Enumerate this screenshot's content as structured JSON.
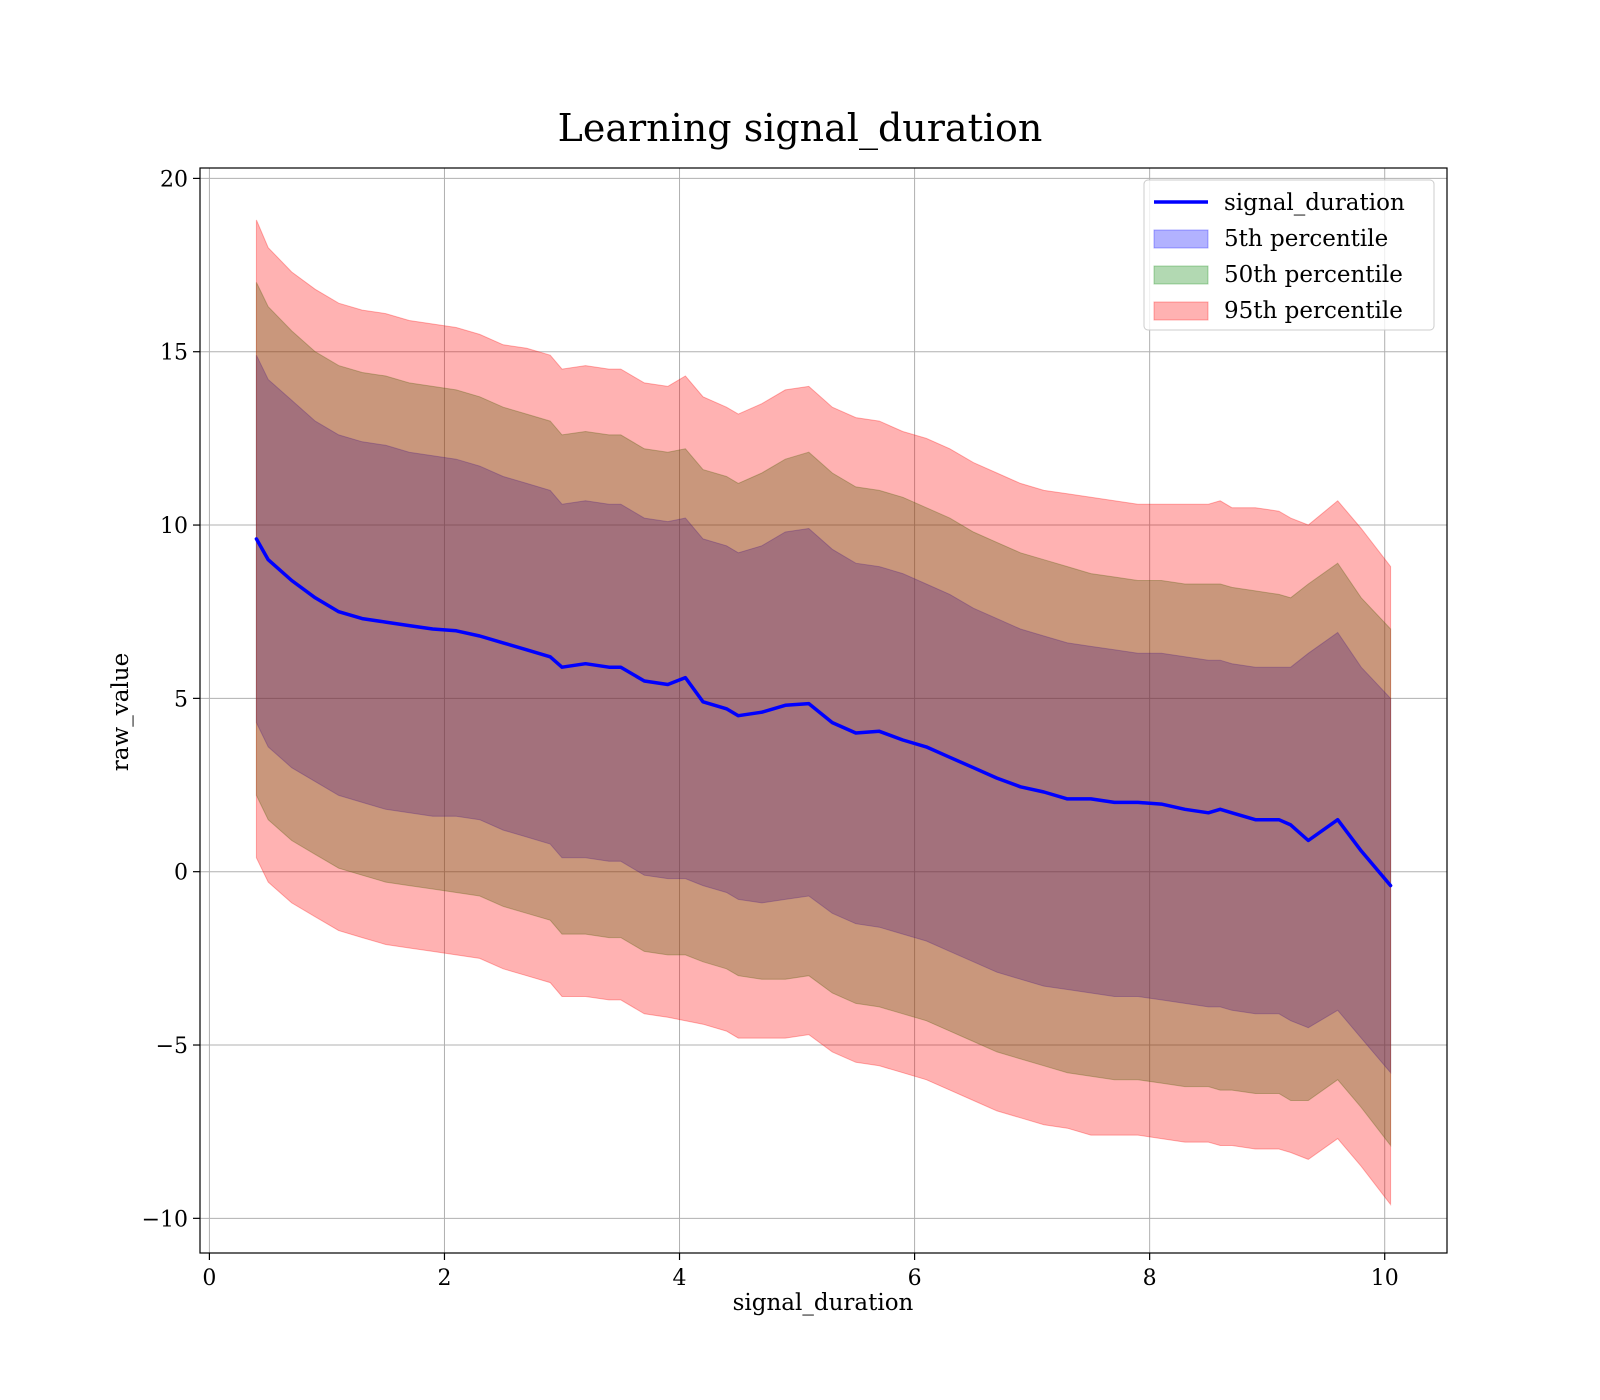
{
  "chart_data": {
    "type": "line",
    "title": "Learning signal_duration",
    "xlabel": "signal_duration",
    "ylabel": "raw_value",
    "xlim": [
      -0.08,
      10.53
    ],
    "ylim": [
      -11,
      20.3
    ],
    "grid": true,
    "x_ticks": [
      0,
      2,
      4,
      6,
      8,
      10
    ],
    "x_tick_labels": [
      "0",
      "2",
      "4",
      "6",
      "8",
      "10"
    ],
    "y_ticks": [
      -10,
      -5,
      0,
      5,
      10,
      15,
      20
    ],
    "y_tick_labels": [
      "−10",
      "−5",
      "0",
      "5",
      "10",
      "15",
      "20"
    ],
    "legend_position": "upper right",
    "x": [
      0.4,
      0.5,
      0.7,
      0.9,
      1.1,
      1.3,
      1.5,
      1.7,
      1.9,
      2.1,
      2.3,
      2.5,
      2.7,
      2.9,
      3.0,
      3.2,
      3.4,
      3.5,
      3.7,
      3.9,
      4.05,
      4.2,
      4.4,
      4.5,
      4.7,
      4.9,
      5.1,
      5.3,
      5.5,
      5.7,
      5.9,
      6.1,
      6.3,
      6.5,
      6.7,
      6.9,
      7.1,
      7.3,
      7.5,
      7.7,
      7.9,
      8.1,
      8.3,
      8.5,
      8.6,
      8.7,
      8.9,
      9.1,
      9.2,
      9.35,
      9.6,
      9.8,
      10.05
    ],
    "series": [
      {
        "name": "signal_duration",
        "kind": "line",
        "color": "#0000ff",
        "values": [
          9.6,
          9.0,
          8.4,
          7.9,
          7.5,
          7.3,
          7.2,
          7.1,
          7.0,
          6.95,
          6.8,
          6.6,
          6.4,
          6.2,
          5.9,
          6.0,
          5.9,
          5.9,
          5.5,
          5.4,
          5.6,
          4.9,
          4.7,
          4.5,
          4.6,
          4.8,
          4.85,
          4.3,
          4.0,
          4.05,
          3.8,
          3.6,
          3.3,
          3.0,
          2.7,
          2.45,
          2.3,
          2.1,
          2.1,
          2.0,
          2.0,
          1.95,
          1.8,
          1.7,
          1.8,
          1.7,
          1.5,
          1.5,
          1.35,
          0.9,
          1.5,
          0.6,
          -0.4
        ]
      },
      {
        "name": "5th percentile",
        "kind": "band",
        "color": "#0000ff",
        "upper": [
          14.9,
          14.2,
          13.6,
          13.0,
          12.6,
          12.4,
          12.3,
          12.1,
          12.0,
          11.9,
          11.7,
          11.4,
          11.2,
          11.0,
          10.6,
          10.7,
          10.6,
          10.6,
          10.2,
          10.1,
          10.2,
          9.6,
          9.4,
          9.2,
          9.4,
          9.8,
          9.9,
          9.3,
          8.9,
          8.8,
          8.6,
          8.3,
          8.0,
          7.6,
          7.3,
          7.0,
          6.8,
          6.6,
          6.5,
          6.4,
          6.3,
          6.3,
          6.2,
          6.1,
          6.1,
          6.0,
          5.9,
          5.9,
          5.9,
          6.3,
          6.9,
          5.9,
          5.0
        ],
        "lower": [
          4.3,
          3.6,
          3.0,
          2.6,
          2.2,
          2.0,
          1.8,
          1.7,
          1.6,
          1.6,
          1.5,
          1.2,
          1.0,
          0.8,
          0.4,
          0.4,
          0.3,
          0.3,
          -0.1,
          -0.2,
          -0.2,
          -0.4,
          -0.6,
          -0.8,
          -0.9,
          -0.8,
          -0.7,
          -1.2,
          -1.5,
          -1.6,
          -1.8,
          -2.0,
          -2.3,
          -2.6,
          -2.9,
          -3.1,
          -3.3,
          -3.4,
          -3.5,
          -3.6,
          -3.6,
          -3.7,
          -3.8,
          -3.9,
          -3.9,
          -4.0,
          -4.1,
          -4.1,
          -4.3,
          -4.5,
          -4.0,
          -4.8,
          -5.8
        ]
      },
      {
        "name": "50th percentile",
        "kind": "band",
        "color": "#008000",
        "upper": [
          17.0,
          16.3,
          15.6,
          15.0,
          14.6,
          14.4,
          14.3,
          14.1,
          14.0,
          13.9,
          13.7,
          13.4,
          13.2,
          13.0,
          12.6,
          12.7,
          12.6,
          12.6,
          12.2,
          12.1,
          12.2,
          11.6,
          11.4,
          11.2,
          11.5,
          11.9,
          12.1,
          11.5,
          11.1,
          11.0,
          10.8,
          10.5,
          10.2,
          9.8,
          9.5,
          9.2,
          9.0,
          8.8,
          8.6,
          8.5,
          8.4,
          8.4,
          8.3,
          8.3,
          8.3,
          8.2,
          8.1,
          8.0,
          7.9,
          8.3,
          8.9,
          7.9,
          7.0
        ],
        "lower": [
          2.2,
          1.5,
          0.9,
          0.5,
          0.1,
          -0.1,
          -0.3,
          -0.4,
          -0.5,
          -0.6,
          -0.7,
          -1.0,
          -1.2,
          -1.4,
          -1.8,
          -1.8,
          -1.9,
          -1.9,
          -2.3,
          -2.4,
          -2.4,
          -2.6,
          -2.8,
          -3.0,
          -3.1,
          -3.1,
          -3.0,
          -3.5,
          -3.8,
          -3.9,
          -4.1,
          -4.3,
          -4.6,
          -4.9,
          -5.2,
          -5.4,
          -5.6,
          -5.8,
          -5.9,
          -6.0,
          -6.0,
          -6.1,
          -6.2,
          -6.2,
          -6.3,
          -6.3,
          -6.4,
          -6.4,
          -6.6,
          -6.6,
          -6.0,
          -6.8,
          -7.9
        ]
      },
      {
        "name": "95th percentile",
        "kind": "band",
        "color": "#ff0000",
        "upper": [
          18.8,
          18.0,
          17.3,
          16.8,
          16.4,
          16.2,
          16.1,
          15.9,
          15.8,
          15.7,
          15.5,
          15.2,
          15.1,
          14.9,
          14.5,
          14.6,
          14.5,
          14.5,
          14.1,
          14.0,
          14.3,
          13.7,
          13.4,
          13.2,
          13.5,
          13.9,
          14.0,
          13.4,
          13.1,
          13.0,
          12.7,
          12.5,
          12.2,
          11.8,
          11.5,
          11.2,
          11.0,
          10.9,
          10.8,
          10.7,
          10.6,
          10.6,
          10.6,
          10.6,
          10.7,
          10.5,
          10.5,
          10.4,
          10.2,
          10.0,
          10.7,
          9.9,
          8.8
        ],
        "lower": [
          0.4,
          -0.3,
          -0.9,
          -1.3,
          -1.7,
          -1.9,
          -2.1,
          -2.2,
          -2.3,
          -2.4,
          -2.5,
          -2.8,
          -3.0,
          -3.2,
          -3.6,
          -3.6,
          -3.7,
          -3.7,
          -4.1,
          -4.2,
          -4.3,
          -4.4,
          -4.6,
          -4.8,
          -4.8,
          -4.8,
          -4.7,
          -5.2,
          -5.5,
          -5.6,
          -5.8,
          -6.0,
          -6.3,
          -6.6,
          -6.9,
          -7.1,
          -7.3,
          -7.4,
          -7.6,
          -7.6,
          -7.6,
          -7.7,
          -7.8,
          -7.8,
          -7.9,
          -7.9,
          -8.0,
          -8.0,
          -8.1,
          -8.3,
          -7.7,
          -8.5,
          -9.6
        ]
      }
    ]
  }
}
